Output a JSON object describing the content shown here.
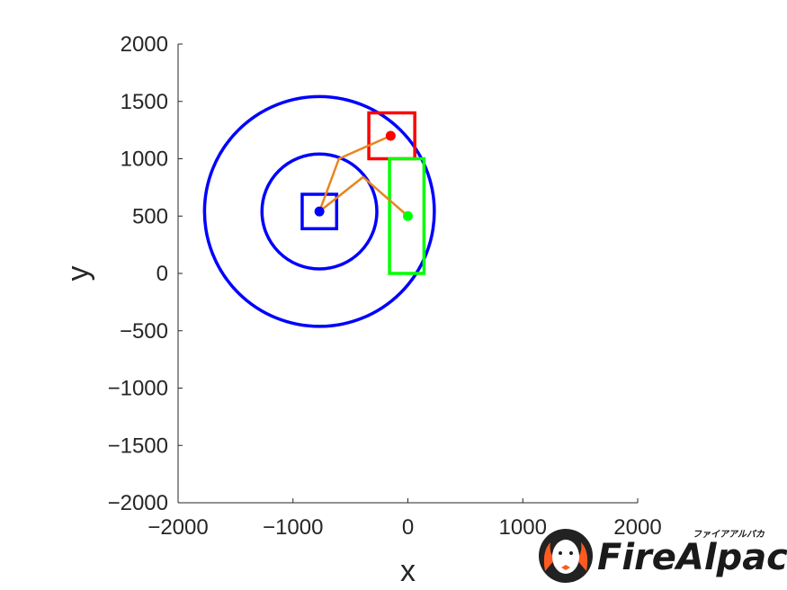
{
  "chart_data": {
    "type": "scatter",
    "title": "",
    "xlabel": "x",
    "ylabel": "y",
    "xlim": [
      -2000,
      2000
    ],
    "ylim": [
      -2000,
      2000
    ],
    "xticks": [
      -2000,
      -1000,
      0,
      1000,
      2000
    ],
    "yticks": [
      -2000,
      -1500,
      -1000,
      -500,
      0,
      500,
      1000,
      1500,
      2000
    ],
    "xtick_labels": [
      "−2000",
      "−1000",
      "0",
      "1000",
      "2000"
    ],
    "ytick_labels": [
      "−2000",
      "−1500",
      "−1000",
      "−500",
      "0",
      "500",
      "1000",
      "1500",
      "2000"
    ],
    "grid": false,
    "points": [
      {
        "id": "blue-point",
        "x": -770,
        "y": 540,
        "color": "#0000ff"
      },
      {
        "id": "red-point",
        "x": -150,
        "y": 1200,
        "color": "#ff0000"
      },
      {
        "id": "green-point",
        "x": 0,
        "y": 500,
        "color": "#00ff00"
      }
    ],
    "circles": [
      {
        "id": "inner-circle",
        "cx": -770,
        "cy": 540,
        "r": 500,
        "color": "#0000ff"
      },
      {
        "id": "outer-circle",
        "cx": -770,
        "cy": 540,
        "r": 1000,
        "color": "#0000ff"
      }
    ],
    "rectangles": [
      {
        "id": "blue-rect",
        "x0": -920,
        "y0": 390,
        "x1": -620,
        "y1": 690,
        "color": "#0000ff"
      },
      {
        "id": "red-rect",
        "x0": -340,
        "y0": 1000,
        "x1": 60,
        "y1": 1400,
        "color": "#ff0000"
      },
      {
        "id": "green-rect",
        "x0": -160,
        "y0": 0,
        "x1": 140,
        "y1": 1000,
        "color": "#00ff00"
      }
    ],
    "lines": [
      {
        "id": "path-to-red",
        "color": "#e8851f",
        "x": [
          -770,
          -600,
          -150
        ],
        "y": [
          540,
          1000,
          1200
        ]
      },
      {
        "id": "path-to-green",
        "color": "#e8851f",
        "x": [
          -770,
          -390,
          0
        ],
        "y": [
          540,
          840,
          500
        ]
      }
    ]
  },
  "logo": {
    "name": "FireAlpaca",
    "katakana": "ファイアアルパカ"
  }
}
